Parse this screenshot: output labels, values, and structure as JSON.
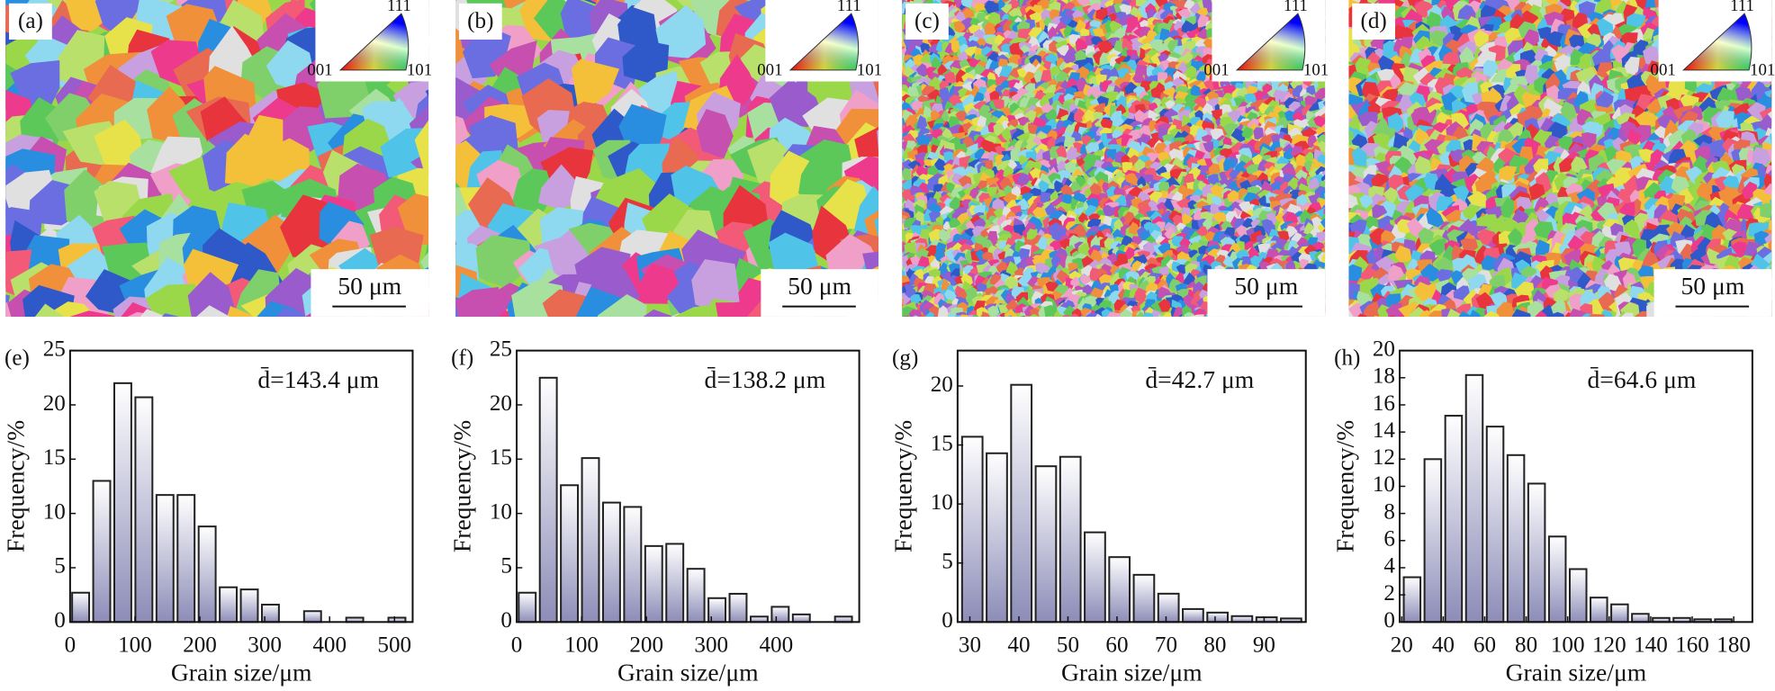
{
  "maps": [
    {
      "label": "(a)",
      "scale_bar": "50 μm",
      "ipf_labels": [
        "111",
        "001",
        "101"
      ]
    },
    {
      "label": "(b)",
      "scale_bar": "50 μm",
      "ipf_labels": [
        "111",
        "001",
        "101"
      ]
    },
    {
      "label": "(c)",
      "scale_bar": "50 μm",
      "ipf_labels": [
        "111",
        "001",
        "101"
      ]
    },
    {
      "label": "(d)",
      "scale_bar": "50 μm",
      "ipf_labels": [
        "111",
        "001",
        "101"
      ]
    }
  ],
  "chart_data": [
    {
      "type": "histogram",
      "panel_label": "(e)",
      "annotation": "d̄=143.4 μm",
      "x_label": "Grain size/μm",
      "y_label": "Frequency/%",
      "color": "#8c8cb8",
      "bins": [
        0,
        32.5,
        65,
        97.5,
        130,
        162.5,
        195,
        227.5,
        260,
        292.5,
        325,
        357.5,
        390,
        422.5,
        455,
        487.5,
        520
      ],
      "values": [
        2.7,
        13,
        22,
        20.7,
        11.7,
        11.7,
        8.8,
        3.2,
        3.0,
        1.6,
        0,
        1.0,
        0,
        0.4,
        0,
        0.4
      ],
      "xlim": [
        0,
        528
      ],
      "ylim": [
        0,
        25
      ],
      "xticks": [
        0,
        100,
        200,
        300,
        400,
        500
      ],
      "yticks": [
        0,
        5,
        10,
        15,
        20,
        25
      ]
    },
    {
      "type": "histogram",
      "panel_label": "(f)",
      "annotation": "d̄=138.2 μm",
      "x_label": "Grain size/μm",
      "y_label": "Frequency/%",
      "color": "#8c8cb8",
      "bins": [
        0,
        32.5,
        65,
        97.5,
        130,
        162.5,
        195,
        227.5,
        260,
        292.5,
        325,
        357.5,
        390,
        422.5,
        455,
        487.5,
        520
      ],
      "values": [
        2.7,
        22.5,
        12.6,
        15.1,
        11,
        10.6,
        7,
        7.2,
        4.9,
        2.2,
        2.6,
        0.5,
        1.4,
        0.7,
        0,
        0.5
      ],
      "xlim": [
        0,
        528
      ],
      "ylim": [
        0,
        25
      ],
      "xticks": [
        0,
        100,
        200,
        300,
        400
      ],
      "yticks": [
        0,
        5,
        10,
        15,
        20,
        25
      ]
    },
    {
      "type": "histogram",
      "panel_label": "(g)",
      "annotation": "d̄=42.7 μm",
      "x_label": "Grain size/μm",
      "y_label": "Frequency/%",
      "color": "#8c8cb8",
      "bins": [
        28,
        33,
        38,
        43,
        48,
        53,
        58,
        63,
        68,
        73,
        78,
        83,
        88,
        93,
        98
      ],
      "values": [
        15.7,
        14.3,
        20.1,
        13.2,
        14,
        7.6,
        5.5,
        4,
        2.4,
        1.1,
        0.8,
        0.5,
        0.4,
        0.3
      ],
      "xlim": [
        27.5,
        98.5
      ],
      "ylim": [
        0,
        23
      ],
      "xticks": [
        30,
        40,
        50,
        60,
        70,
        80,
        90
      ],
      "yticks": [
        0,
        5,
        10,
        15,
        20
      ]
    },
    {
      "type": "histogram",
      "panel_label": "(h)",
      "annotation": "d̄=64.6 μm",
      "x_label": "Grain size/μm",
      "y_label": "Frequency/%",
      "color": "#8c8cb8",
      "bins": [
        20,
        30,
        40,
        50,
        60,
        70,
        80,
        90,
        100,
        110,
        120,
        130,
        140,
        150,
        160,
        170,
        180
      ],
      "values": [
        3.3,
        12,
        15.2,
        18.2,
        14.4,
        12.3,
        10.2,
        6.3,
        3.9,
        1.8,
        1.3,
        0.6,
        0.3,
        0.3,
        0.2,
        0.2
      ],
      "xlim": [
        19,
        189
      ],
      "ylim": [
        0,
        20
      ],
      "xticks": [
        20,
        40,
        60,
        80,
        100,
        120,
        140,
        160,
        180
      ],
      "yticks": [
        0,
        2,
        4,
        6,
        8,
        10,
        12,
        14,
        16,
        18,
        20
      ]
    }
  ]
}
